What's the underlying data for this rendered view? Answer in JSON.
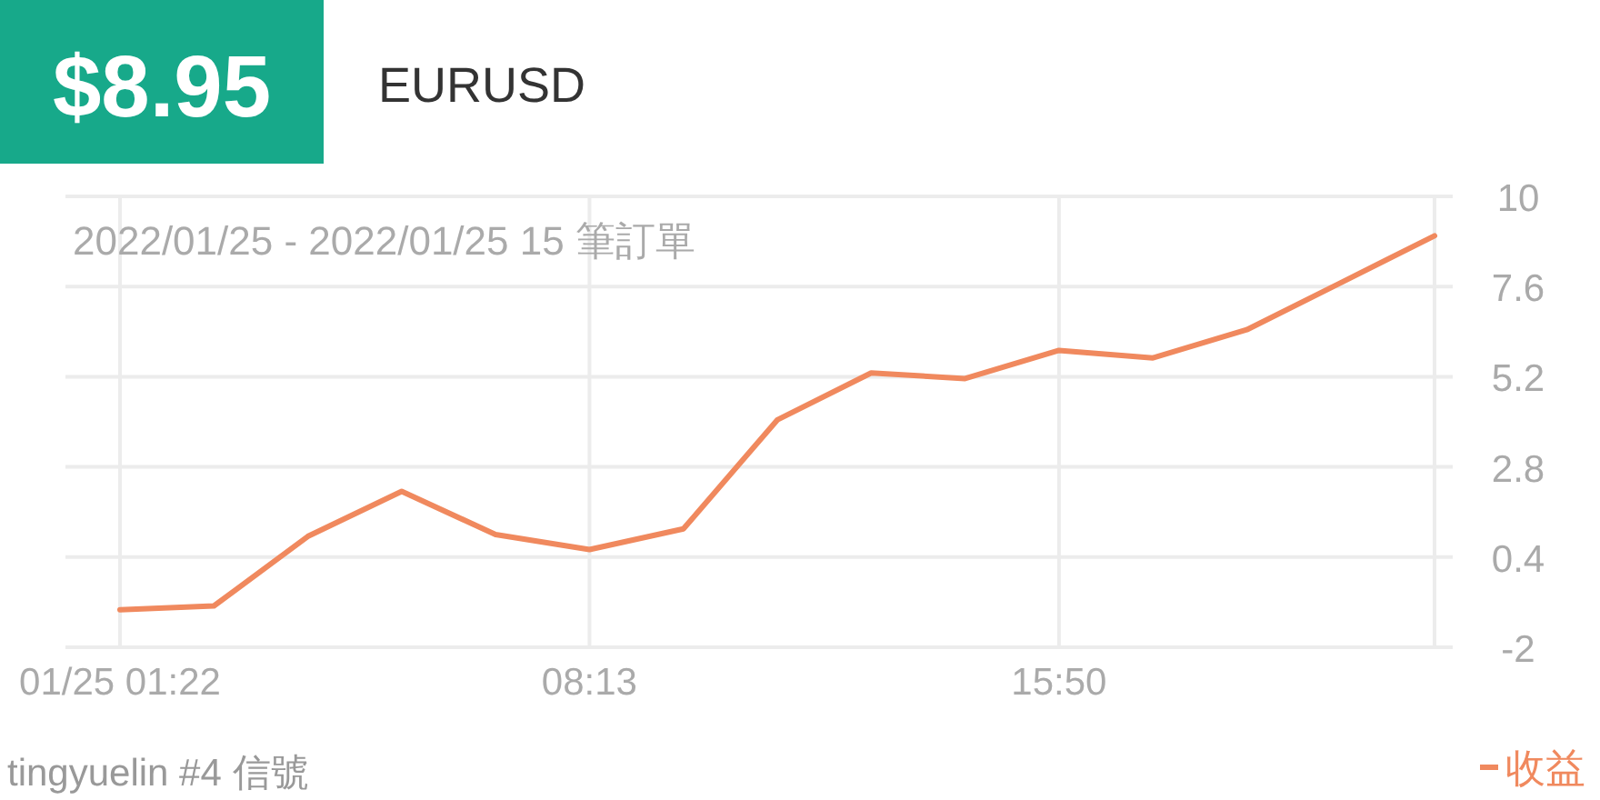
{
  "chart_data": {
    "type": "line",
    "title": "EURUSD",
    "subtitle": "2022/01/25 - 2022/01/25 15 筆訂單",
    "annotations": [
      "$8.95",
      "tingyuelin #4 信號"
    ],
    "categories": [
      "01/25 01:22",
      null,
      null,
      null,
      null,
      "08:13",
      null,
      null,
      null,
      null,
      "15:50",
      null,
      null,
      null,
      null
    ],
    "series": [
      {
        "name": "收益",
        "color": "#f0895e",
        "values": [
          -1.0,
          -0.9,
          0.95,
          2.15,
          1.0,
          0.6,
          1.15,
          4.05,
          5.3,
          5.15,
          5.9,
          5.7,
          6.45,
          7.7,
          8.95
        ]
      }
    ],
    "ylim": [
      -2,
      10
    ],
    "yticks": [
      -2,
      0.4,
      2.8,
      5.2,
      7.6,
      10
    ],
    "grid": true,
    "legend": "bottom right"
  }
}
